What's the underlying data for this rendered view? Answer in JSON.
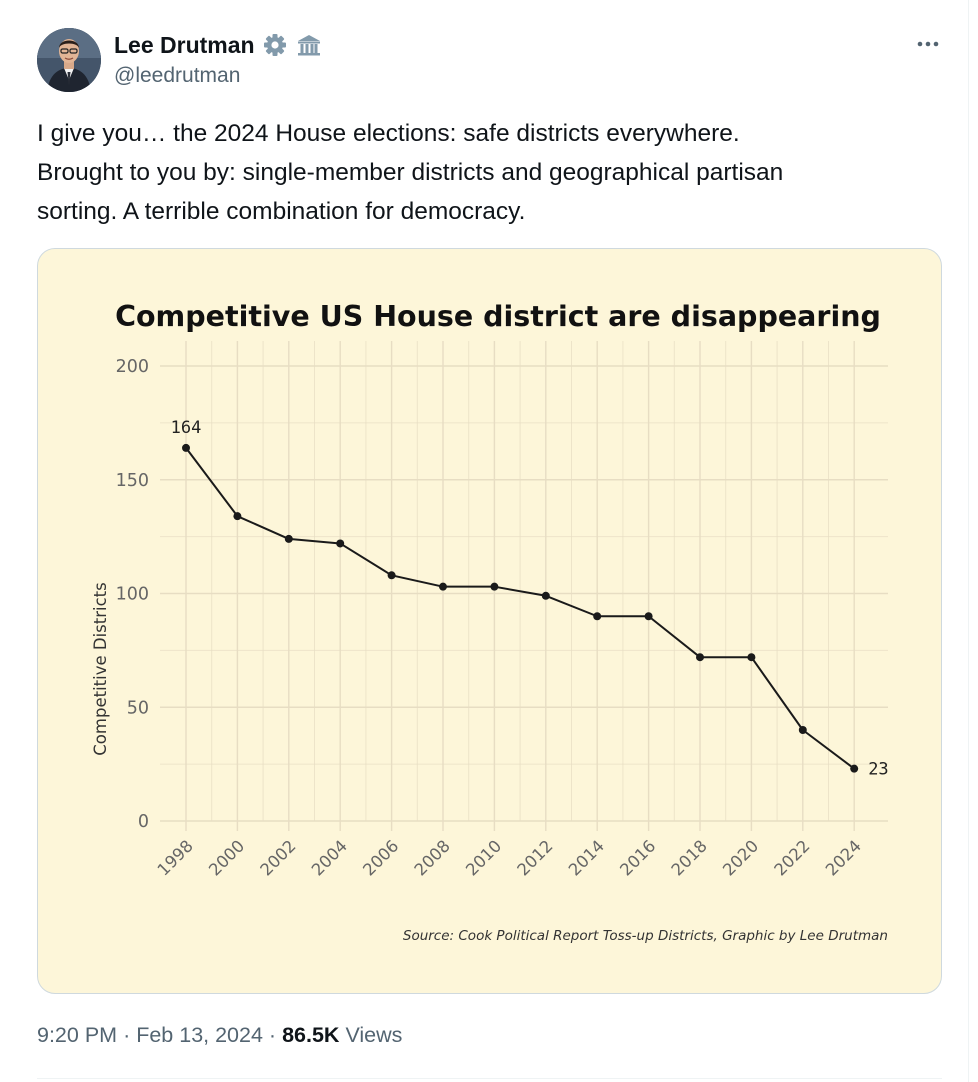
{
  "author": {
    "name": "Lee Drutman",
    "handle": "@leedrutman",
    "badges": [
      "gear-icon",
      "government-building-icon"
    ]
  },
  "tweet": {
    "text": "I give you… the 2024 House elections: safe districts everywhere.\nBrought to you by: single-member districts and geographical partisan\nsorting. A terrible combination for democracy."
  },
  "meta": {
    "time": "9:20 PM",
    "separator": "·",
    "date": "Feb 13, 2024",
    "views_count": "86.5K",
    "views_label": "Views"
  },
  "colors": {
    "chart_background": "#fdf6d9",
    "grid": "#e7ddc3",
    "line": "#1a1a1a",
    "text_secondary": "#536471"
  },
  "chart_data": {
    "type": "line",
    "title": "Competitive US House district are disappearing",
    "ylabel": "Competitive Districts",
    "xlabel": "",
    "x": [
      "1998",
      "2000",
      "2002",
      "2004",
      "2006",
      "2008",
      "2010",
      "2012",
      "2014",
      "2016",
      "2018",
      "2020",
      "2022",
      "2024"
    ],
    "series": [
      {
        "values": [
          164,
          134,
          124,
          122,
          108,
          103,
          103,
          99,
          90,
          90,
          72,
          72,
          40,
          23
        ]
      }
    ],
    "ylim": [
      0,
      200
    ],
    "yticks": [
      0,
      50,
      100,
      150,
      200
    ],
    "point_labels": [
      {
        "index": 0,
        "text": "164"
      },
      {
        "index": 13,
        "text": "23"
      }
    ],
    "source": "Source: Cook Political Report Toss-up Districts, Graphic by Lee Drutman",
    "grid": true,
    "legend": "none"
  }
}
